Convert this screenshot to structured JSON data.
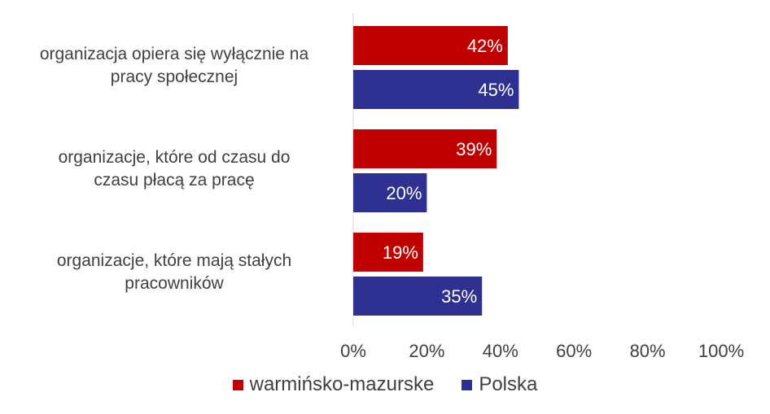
{
  "chart_data": {
    "type": "bar",
    "orientation": "horizontal",
    "categories": [
      "organizacja opiera się wyłącznie na pracy społecznej",
      "organizacje, które od czasu do czasu płacą za pracę",
      "organizacje, które mają stałych pracowników"
    ],
    "category_lines": [
      [
        "organizacja opiera się wyłącznie na",
        "pracy społecznej"
      ],
      [
        "organizacje, które od czasu do",
        "czasu płacą za pracę"
      ],
      [
        "organizacje, które mają stałych",
        "pracowników"
      ]
    ],
    "series": [
      {
        "name": "warmińsko-mazurske",
        "color": "#C00000",
        "values": [
          42,
          39,
          19
        ],
        "labels": [
          "42%",
          "39%",
          "19%"
        ]
      },
      {
        "name": "Polska",
        "color": "#2E3192",
        "values": [
          45,
          20,
          35
        ],
        "labels": [
          "45%",
          "20%",
          "35%"
        ]
      }
    ],
    "xlim": [
      0,
      100
    ],
    "xticks": [
      0,
      20,
      40,
      60,
      80,
      100
    ],
    "xtick_labels": [
      "0%",
      "20%",
      "40%",
      "60%",
      "80%",
      "100%"
    ],
    "grid": false,
    "legend_position": "bottom",
    "title": "",
    "xlabel": "",
    "ylabel": ""
  }
}
